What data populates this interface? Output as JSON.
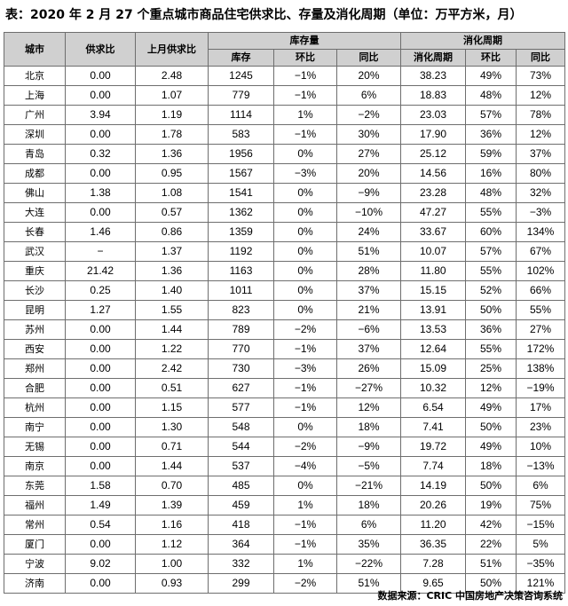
{
  "title": "表：2020 年 2 月 27 个重点城市商品住宅供求比、存量及消化周期（单位：万平方米，月）",
  "headers": {
    "city": "城市",
    "supply_ratio": "供求比",
    "prev_supply_ratio": "上月供求比",
    "inventory_group": "库存量",
    "digest_group": "消化周期",
    "inventory": "库存",
    "mom": "环比",
    "yoy": "同比",
    "digest_period": "消化周期",
    "digest_mom": "环比",
    "digest_yoy": "同比"
  },
  "rows": [
    [
      "北京",
      "0.00",
      "2.48",
      "1245",
      "−1%",
      "20%",
      "38.23",
      "49%",
      "73%"
    ],
    [
      "上海",
      "0.00",
      "1.07",
      "779",
      "−1%",
      "6%",
      "18.83",
      "48%",
      "12%"
    ],
    [
      "广州",
      "3.94",
      "1.19",
      "1114",
      "1%",
      "−2%",
      "23.03",
      "57%",
      "78%"
    ],
    [
      "深圳",
      "0.00",
      "1.78",
      "583",
      "−1%",
      "30%",
      "17.90",
      "36%",
      "12%"
    ],
    [
      "青岛",
      "0.32",
      "1.36",
      "1956",
      "0%",
      "27%",
      "25.12",
      "59%",
      "37%"
    ],
    [
      "成都",
      "0.00",
      "0.95",
      "1567",
      "−3%",
      "20%",
      "14.56",
      "16%",
      "80%"
    ],
    [
      "佛山",
      "1.38",
      "1.08",
      "1541",
      "0%",
      "−9%",
      "23.28",
      "48%",
      "32%"
    ],
    [
      "大连",
      "0.00",
      "0.57",
      "1362",
      "0%",
      "−10%",
      "47.27",
      "55%",
      "−3%"
    ],
    [
      "长春",
      "1.46",
      "0.86",
      "1359",
      "0%",
      "24%",
      "33.67",
      "60%",
      "134%"
    ],
    [
      "武汉",
      "−",
      "1.37",
      "1192",
      "0%",
      "51%",
      "10.07",
      "57%",
      "67%"
    ],
    [
      "重庆",
      "21.42",
      "1.36",
      "1163",
      "0%",
      "28%",
      "11.80",
      "55%",
      "102%"
    ],
    [
      "长沙",
      "0.25",
      "1.40",
      "1011",
      "0%",
      "37%",
      "15.15",
      "52%",
      "66%"
    ],
    [
      "昆明",
      "1.27",
      "1.55",
      "823",
      "0%",
      "21%",
      "13.91",
      "50%",
      "55%"
    ],
    [
      "苏州",
      "0.00",
      "1.44",
      "789",
      "−2%",
      "−6%",
      "13.53",
      "36%",
      "27%"
    ],
    [
      "西安",
      "0.00",
      "1.22",
      "770",
      "−1%",
      "37%",
      "12.64",
      "55%",
      "172%"
    ],
    [
      "郑州",
      "0.00",
      "2.42",
      "730",
      "−3%",
      "26%",
      "15.09",
      "25%",
      "138%"
    ],
    [
      "合肥",
      "0.00",
      "0.51",
      "627",
      "−1%",
      "−27%",
      "10.32",
      "12%",
      "−19%"
    ],
    [
      "杭州",
      "0.00",
      "1.15",
      "577",
      "−1%",
      "12%",
      "6.54",
      "49%",
      "17%"
    ],
    [
      "南宁",
      "0.00",
      "1.30",
      "548",
      "0%",
      "18%",
      "7.41",
      "50%",
      "23%"
    ],
    [
      "无锡",
      "0.00",
      "0.71",
      "544",
      "−2%",
      "−9%",
      "19.72",
      "49%",
      "10%"
    ],
    [
      "南京",
      "0.00",
      "1.44",
      "537",
      "−4%",
      "−5%",
      "7.74",
      "18%",
      "−13%"
    ],
    [
      "东莞",
      "1.58",
      "0.70",
      "485",
      "0%",
      "−21%",
      "14.19",
      "50%",
      "6%"
    ],
    [
      "福州",
      "1.49",
      "1.39",
      "459",
      "1%",
      "18%",
      "20.26",
      "19%",
      "75%"
    ],
    [
      "常州",
      "0.54",
      "1.16",
      "418",
      "−1%",
      "6%",
      "11.20",
      "42%",
      "−15%"
    ],
    [
      "厦门",
      "0.00",
      "1.12",
      "364",
      "−1%",
      "35%",
      "36.35",
      "22%",
      "5%"
    ],
    [
      "宁波",
      "9.02",
      "1.00",
      "332",
      "1%",
      "−22%",
      "7.28",
      "51%",
      "−35%"
    ],
    [
      "济南",
      "0.00",
      "0.93",
      "299",
      "−2%",
      "51%",
      "9.65",
      "50%",
      "121%"
    ]
  ],
  "source": "数据来源：CRIC 中国房地产决策咨询系统",
  "colors": {
    "header_bg": "#d0d0d0",
    "border": "#6e6e6e"
  }
}
